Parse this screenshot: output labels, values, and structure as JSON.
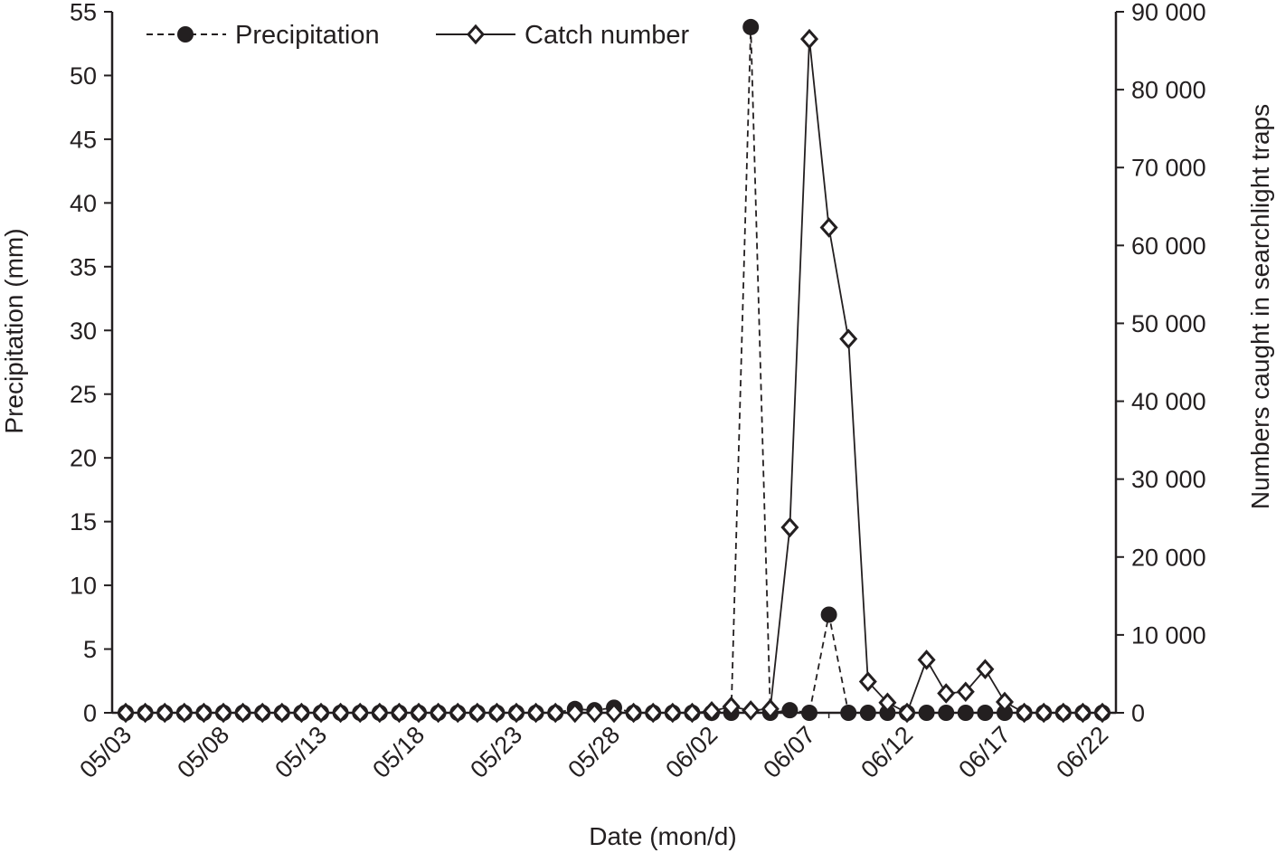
{
  "chart_data": {
    "type": "line",
    "xlabel": "Date (mon/d)",
    "ylabel_left": "Precipitation (mm)",
    "ylabel_right": "Numbers caught in searchlight traps",
    "ylim_left": [
      0,
      55
    ],
    "ylim_right": [
      0,
      90000
    ],
    "x_tick_labels": [
      "05/03",
      "05/08",
      "05/13",
      "05/18",
      "05/23",
      "05/28",
      "06/02",
      "06/07",
      "06/12",
      "06/17",
      "06/22"
    ],
    "y_left_ticks": [
      {
        "value": 0,
        "label": "0"
      },
      {
        "value": 5,
        "label": "5"
      },
      {
        "value": 10,
        "label": "10"
      },
      {
        "value": 15,
        "label": "15"
      },
      {
        "value": 20,
        "label": "20"
      },
      {
        "value": 25,
        "label": "25"
      },
      {
        "value": 30,
        "label": "30"
      },
      {
        "value": 35,
        "label": "35"
      },
      {
        "value": 40,
        "label": "40"
      },
      {
        "value": 45,
        "label": "45"
      },
      {
        "value": 50,
        "label": "50"
      },
      {
        "value": 55,
        "label": "55"
      }
    ],
    "y_right_ticks": [
      {
        "value": 0,
        "label": "0"
      },
      {
        "value": 10000,
        "label": "10 000"
      },
      {
        "value": 20000,
        "label": "20 000"
      },
      {
        "value": 30000,
        "label": "30 000"
      },
      {
        "value": 40000,
        "label": "40 000"
      },
      {
        "value": 50000,
        "label": "50 000"
      },
      {
        "value": 60000,
        "label": "60 000"
      },
      {
        "value": 70000,
        "label": "70 000"
      },
      {
        "value": 80000,
        "label": "80 000"
      },
      {
        "value": 90000,
        "label": "90 000"
      }
    ],
    "x": [
      "05/03",
      "05/04",
      "05/05",
      "05/06",
      "05/07",
      "05/08",
      "05/09",
      "05/10",
      "05/11",
      "05/12",
      "05/13",
      "05/14",
      "05/15",
      "05/16",
      "05/17",
      "05/18",
      "05/19",
      "05/20",
      "05/21",
      "05/22",
      "05/23",
      "05/24",
      "05/25",
      "05/26",
      "05/27",
      "05/28",
      "05/29",
      "05/30",
      "05/31",
      "06/01",
      "06/02",
      "06/03",
      "06/04",
      "06/05",
      "06/06",
      "06/07",
      "06/08",
      "06/09",
      "06/10",
      "06/11",
      "06/12",
      "06/13",
      "06/14",
      "06/15",
      "06/16",
      "06/17",
      "06/18",
      "06/19",
      "06/20",
      "06/21",
      "06/22"
    ],
    "series": [
      {
        "name": "Precipitation",
        "axis": "left",
        "style": "dashed",
        "marker": "filled-circle",
        "values": [
          0,
          0,
          0,
          0,
          0,
          0,
          0,
          0,
          0,
          0,
          0,
          0,
          0,
          0,
          0,
          0,
          0,
          0,
          0,
          0,
          0,
          0,
          0,
          0.3,
          0.2,
          0.4,
          0,
          0,
          0,
          0,
          0,
          0,
          53.8,
          0,
          0.2,
          0,
          7.7,
          0,
          0,
          0,
          0,
          0,
          0,
          0,
          0,
          0,
          0,
          0,
          0,
          0,
          0
        ]
      },
      {
        "name": "Catch number",
        "axis": "right",
        "style": "solid",
        "marker": "open-diamond",
        "values": [
          0,
          0,
          0,
          0,
          0,
          0,
          0,
          0,
          0,
          0,
          0,
          0,
          0,
          0,
          0,
          0,
          0,
          0,
          0,
          0,
          0,
          0,
          0,
          0,
          0,
          0,
          0,
          0,
          0,
          0,
          200,
          800,
          300,
          500,
          23800,
          86500,
          62300,
          48000,
          4000,
          1300,
          0,
          6800,
          2500,
          2700,
          5600,
          1400,
          0,
          0,
          0,
          0,
          0
        ]
      }
    ],
    "legend": {
      "position": "top-left"
    },
    "grid": false
  }
}
